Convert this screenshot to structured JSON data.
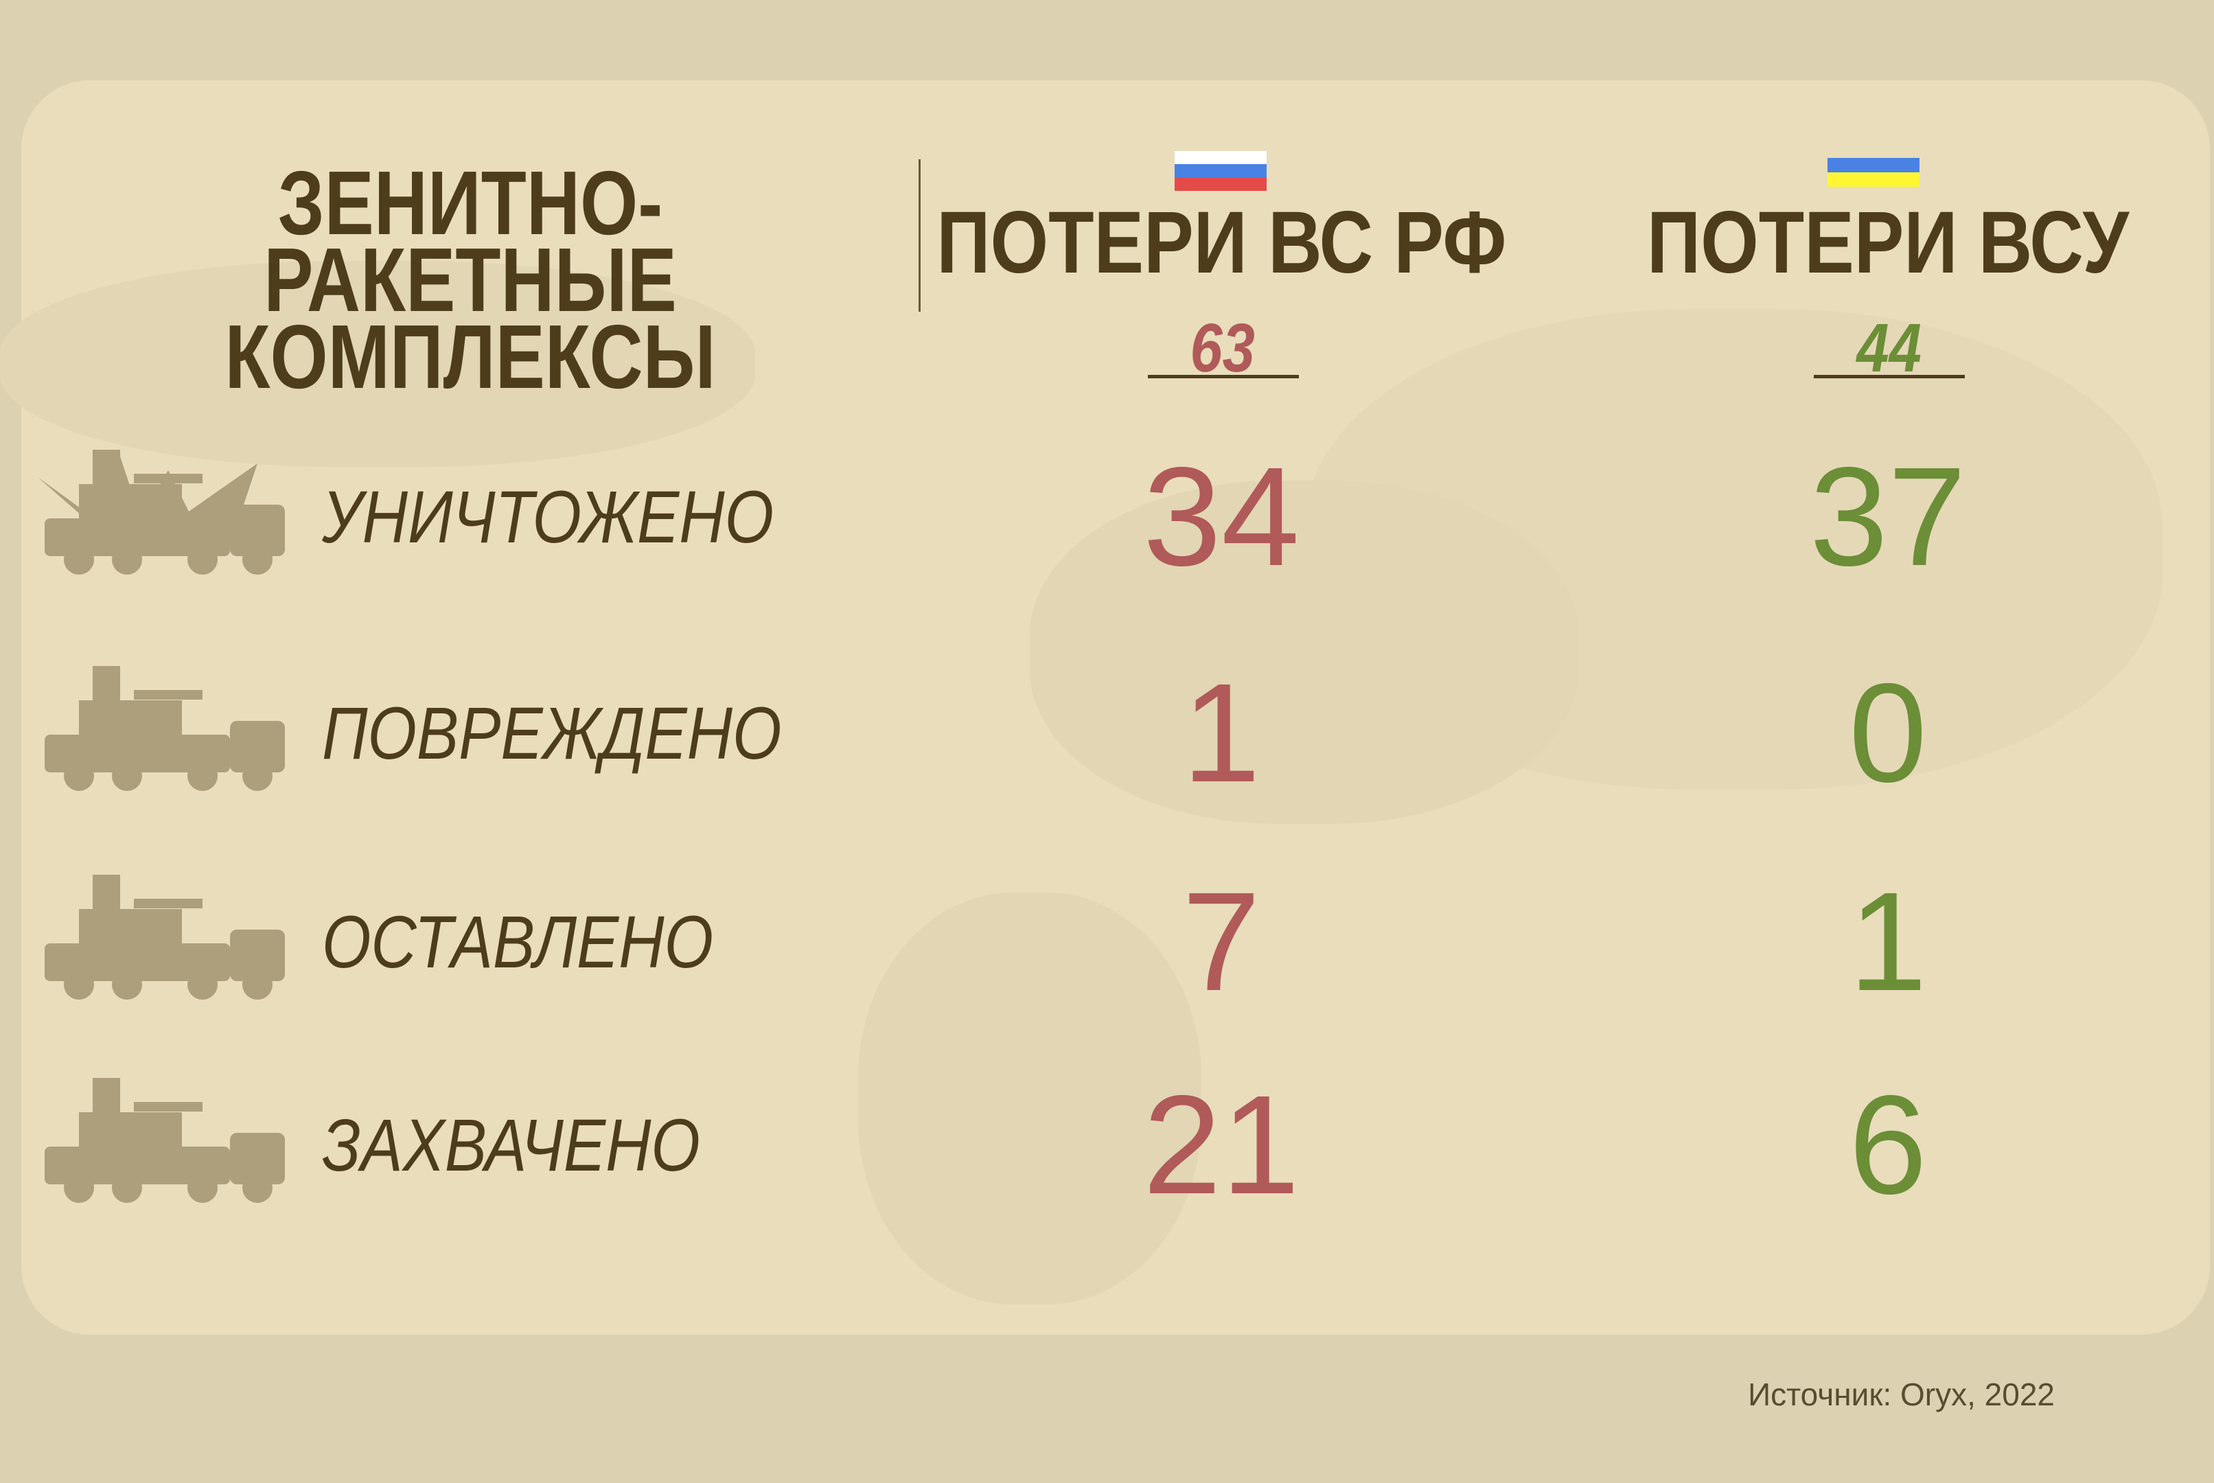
{
  "title": {
    "line1": "ЗЕНИТНО-РАКЕТНЫЕ",
    "line2": "КОМПЛЕКСЫ"
  },
  "columns": [
    {
      "header": "ПОТЕРИ ВС РФ",
      "flag": "russia-flag",
      "flag_colors": [
        "#ffffff",
        "#4a82e4",
        "#e44a48"
      ],
      "total": "63",
      "color": "#b05a5a"
    },
    {
      "header": "ПОТЕРИ ВСУ",
      "flag": "ukraine-flag",
      "flag_colors": [
        "#4a82e4",
        "#fff633"
      ],
      "total": "44",
      "color": "#6b8e37"
    }
  ],
  "rows": [
    {
      "label": "УНИЧТОЖЕНО",
      "icon": "destroyed-vehicle-icon",
      "rf": "34",
      "ua": "37"
    },
    {
      "label": "ПОВРЕЖДЕНО",
      "icon": "damaged-vehicle-icon",
      "rf": "1",
      "ua": "0"
    },
    {
      "label": "ОСТАВЛЕНО",
      "icon": "abandoned-vehicle-icon",
      "rf": "7",
      "ua": "1"
    },
    {
      "label": "ЗАХВАЧЕНО",
      "icon": "captured-vehicle-icon",
      "rf": "21",
      "ua": "6"
    }
  ],
  "source": "Источник: Oryx, 2022"
}
